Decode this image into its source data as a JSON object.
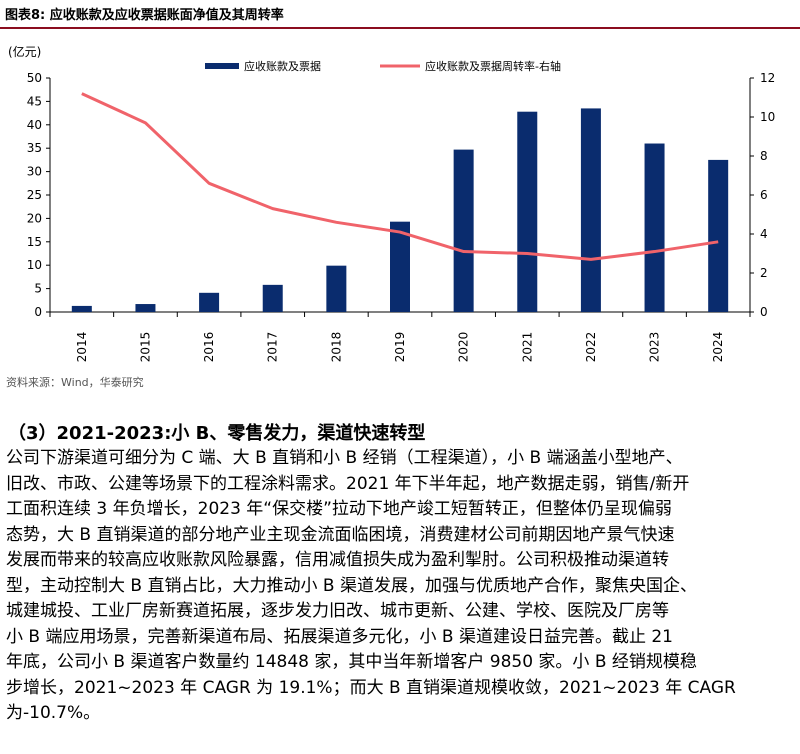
{
  "figure": {
    "title": "图表8:   应收账款及应收票据账面净值及其周转率",
    "source": "资料来源：Wind，华泰研究"
  },
  "chart_data": {
    "type": "bar",
    "unit_label": "(亿元)",
    "categories": [
      "2014",
      "2015",
      "2016",
      "2017",
      "2018",
      "2019",
      "2020",
      "2021",
      "2022",
      "2023",
      "2024"
    ],
    "series": [
      {
        "name": "应收账款及票据",
        "type": "bar",
        "axis": "left",
        "values": [
          1.3,
          1.7,
          4.1,
          5.8,
          9.9,
          19.3,
          34.7,
          42.8,
          43.5,
          36.0,
          32.5
        ]
      },
      {
        "name": "应收账款及票据周转率-右轴",
        "type": "line",
        "axis": "right",
        "values": [
          11.2,
          9.7,
          6.6,
          5.3,
          4.6,
          4.1,
          3.1,
          3.0,
          2.7,
          3.1,
          3.6
        ]
      }
    ],
    "ylim_left": [
      0,
      50
    ],
    "yticks_left": [
      0,
      5,
      10,
      15,
      20,
      25,
      30,
      35,
      40,
      45,
      50
    ],
    "ylim_right": [
      0,
      12
    ],
    "yticks_right": [
      0,
      2,
      4,
      6,
      8,
      10,
      12
    ],
    "grid": false,
    "legend_position": "top",
    "colors": {
      "bar": "#0a2c6e",
      "line": "#f0636a"
    }
  },
  "section": {
    "heading": "（3）2021-2023:小 B、零售发力，渠道快速转型",
    "lines": [
      "公司下游渠道可细分为 C 端、大 B 直销和小 B 经销（工程渠道），小 B 端涵盖小型地产、",
      "旧改、市政、公建等场景下的工程涂料需求。2021 年下半年起，地产数据走弱，销售/新开",
      "工面积连续 3 年负增长，2023 年“保交楼”拉动下地产竣工短暂转正，但整体仍呈现偏弱",
      "态势，大 B 直销渠道的部分地产业主现金流面临困境，消费建材公司前期因地产景气快速",
      "发展而带来的较高应收账款风险暴露，信用减值损失成为盈利掣肘。公司积极推动渠道转",
      "型，主动控制大 B 直销占比，大力推动小 B 渠道发展，加强与优质地产合作，聚焦央国企、",
      "城建城投、工业厂房新赛道拓展，逐步发力旧改、城市更新、公建、学校、医院及厂房等",
      "小 B 端应用场景，完善新渠道布局、拓展渠道多元化，小 B 渠道建设日益完善。截止 21",
      "年底，公司小 B 渠道客户数量约 14848 家，其中当年新增客户 9850 家。小 B 经销规模稳",
      "步增长，2021~2023 年 CAGR 为 19.1%；而大 B 直销渠道规模收敛，2021~2023 年 CAGR",
      "为-10.7%。"
    ]
  }
}
